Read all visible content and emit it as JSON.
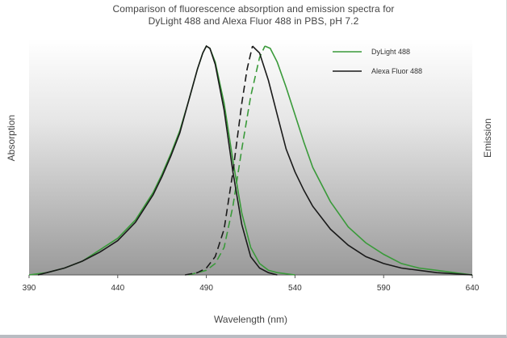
{
  "chart_data": {
    "type": "line",
    "title": [
      "Comparison of fluorescence absorption and emission spectra for",
      "DyLight 488 and Alexa Fluor 488 in PBS, pH 7.2"
    ],
    "xlabel": "Wavelength (nm)",
    "ylabel_left": "Absorption",
    "ylabel_right": "Emission",
    "xlim": [
      390,
      640
    ],
    "ylim": [
      0,
      1
    ],
    "xticks": [
      390,
      440,
      490,
      540,
      590,
      640
    ],
    "grid": false,
    "legend_position": "top-right",
    "background": "vertical gradient, dark gray at bottom to white at top",
    "series": [
      {
        "name": "DyLight 488",
        "color": "#3a9a3a",
        "absorption": {
          "style": "solid",
          "x": [
            390,
            400,
            410,
            420,
            430,
            440,
            450,
            460,
            465,
            470,
            475,
            480,
            485,
            488,
            490,
            492,
            495,
            500,
            505,
            510,
            515,
            520,
            525,
            530,
            540
          ],
          "y": [
            0.0,
            0.01,
            0.03,
            0.06,
            0.11,
            0.16,
            0.24,
            0.36,
            0.44,
            0.53,
            0.63,
            0.76,
            0.9,
            0.97,
            1.0,
            0.99,
            0.93,
            0.75,
            0.5,
            0.27,
            0.12,
            0.05,
            0.02,
            0.01,
            0.0
          ]
        },
        "emission": {
          "style": "dashed-then-solid",
          "x": [
            480,
            490,
            495,
            500,
            505,
            510,
            515,
            520,
            523,
            526,
            530,
            535,
            540,
            545,
            550,
            560,
            570,
            580,
            590,
            600,
            610,
            620,
            630,
            640
          ],
          "y": [
            0.0,
            0.02,
            0.05,
            0.12,
            0.3,
            0.55,
            0.78,
            0.95,
            1.0,
            0.99,
            0.93,
            0.82,
            0.7,
            0.58,
            0.47,
            0.32,
            0.21,
            0.14,
            0.09,
            0.05,
            0.03,
            0.02,
            0.01,
            0.0
          ]
        }
      },
      {
        "name": "Alexa Fluor 488",
        "color": "#1a1a1a",
        "absorption": {
          "style": "solid",
          "x": [
            395,
            400,
            410,
            420,
            430,
            440,
            450,
            460,
            465,
            470,
            475,
            480,
            485,
            488,
            490,
            492,
            495,
            500,
            505,
            510,
            515,
            520,
            525,
            530
          ],
          "y": [
            0.0,
            0.01,
            0.03,
            0.06,
            0.1,
            0.15,
            0.23,
            0.35,
            0.43,
            0.52,
            0.62,
            0.76,
            0.9,
            0.97,
            1.0,
            0.99,
            0.92,
            0.72,
            0.45,
            0.22,
            0.08,
            0.03,
            0.01,
            0.0
          ]
        },
        "emission": {
          "style": "dashed-then-solid",
          "x": [
            478,
            485,
            490,
            495,
            500,
            505,
            510,
            513,
            516,
            520,
            525,
            530,
            535,
            540,
            545,
            550,
            560,
            570,
            580,
            590,
            600,
            610,
            620,
            630,
            640
          ],
          "y": [
            0.0,
            0.01,
            0.03,
            0.08,
            0.2,
            0.45,
            0.75,
            0.9,
            1.0,
            0.97,
            0.85,
            0.7,
            0.55,
            0.45,
            0.37,
            0.3,
            0.2,
            0.13,
            0.08,
            0.05,
            0.03,
            0.02,
            0.01,
            0.005,
            0.0
          ]
        }
      }
    ]
  }
}
